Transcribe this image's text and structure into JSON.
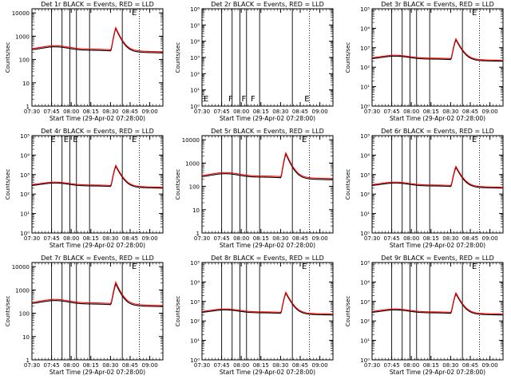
{
  "chart_data": [
    {
      "type": "line",
      "title": "Det 1r BLACK = Events, RED = LLD",
      "xlabel": "Start Time (29-Apr-02 07:28:00)",
      "ylabel": "Counts/sec",
      "ylim": [
        1,
        15000
      ],
      "ytick_labels": [
        "1",
        "10",
        "100",
        "1000",
        "10000"
      ],
      "xtick_labels": [
        "07:30",
        "07:45",
        "08:00",
        "08:15",
        "08:30",
        "08:45",
        "09:00"
      ],
      "flags": [
        {
          "label": "E",
          "x": "08:45"
        }
      ],
      "series": [
        {
          "name": "Events",
          "color": "#000000",
          "peak": 1900
        },
        {
          "name": "LLD",
          "color": "#ff0000",
          "peak": 2100
        }
      ]
    },
    {
      "type": "line",
      "title": "Det 2r BLACK = Events, RED = LLD",
      "xlabel": "Start Time (29-Apr-02 07:28:00)",
      "ylabel": "Counts/sec",
      "ylim": [
        1,
        1000000
      ],
      "ytick_labels": [
        "10⁰",
        "10¹",
        "10²",
        "10³",
        "10⁴",
        "10⁵",
        "10⁶"
      ],
      "xtick_labels": [
        "07:30",
        "07:45",
        "08:00",
        "08:15",
        "08:30",
        "08:45",
        "09:00"
      ],
      "flags": [
        {
          "label": "E",
          "x": "07:30"
        },
        {
          "label": "F",
          "x": "07:49"
        },
        {
          "label": "F",
          "x": "07:59"
        },
        {
          "label": "F",
          "x": "08:06"
        },
        {
          "label": "E",
          "x": "08:47"
        }
      ],
      "series": []
    },
    {
      "type": "line",
      "title": "Det 3r BLACK = Events, RED = LLD",
      "xlabel": "Start Time (29-Apr-02 07:28:00)",
      "ylabel": "Counts/sec",
      "ylim": [
        1,
        100000
      ],
      "ytick_labels": [
        "10⁰",
        "10¹",
        "10²",
        "10³",
        "10⁴",
        "10⁵"
      ],
      "xtick_labels": [
        "07:30",
        "07:45",
        "08:00",
        "08:15",
        "08:30",
        "08:45",
        "09:00"
      ],
      "flags": [
        {
          "label": "E",
          "x": "08:45"
        }
      ],
      "series": [
        {
          "name": "Events",
          "color": "#000000",
          "peak": 2200
        },
        {
          "name": "LLD",
          "color": "#ff0000",
          "peak": 2500
        }
      ]
    },
    {
      "type": "line",
      "title": "Det 4r BLACK = Events, RED = LLD",
      "xlabel": "Start Time (29-Apr-02 07:28:00)",
      "ylabel": "Counts/sec",
      "ylim": [
        1,
        100000
      ],
      "ytick_labels": [
        "10⁰",
        "10¹",
        "10²",
        "10³",
        "10⁴",
        "10⁵"
      ],
      "xtick_labels": [
        "07:30",
        "07:45",
        "08:00",
        "08:15",
        "08:30",
        "08:45",
        "09:00"
      ],
      "flags": [
        {
          "label": "E",
          "x": "07:43"
        },
        {
          "label": "E",
          "x": "07:53"
        },
        {
          "label": "E",
          "x": "08:00"
        },
        {
          "label": "E",
          "x": "08:45"
        }
      ],
      "series": [
        {
          "name": "Events",
          "color": "#000000",
          "peak": 2300
        },
        {
          "name": "LLD",
          "color": "#ff0000",
          "peak": 2600
        }
      ]
    },
    {
      "type": "line",
      "title": "Det 5r BLACK = Events, RED = LLD",
      "xlabel": "Start Time (29-Apr-02 07:28:00)",
      "ylabel": "Counts/sec",
      "ylim": [
        1,
        15000
      ],
      "ytick_labels": [
        "1",
        "10",
        "100",
        "1000",
        "10000"
      ],
      "xtick_labels": [
        "07:30",
        "07:45",
        "08:00",
        "08:15",
        "08:30",
        "08:45",
        "09:00"
      ],
      "flags": [
        {
          "label": "E",
          "x": "08:45"
        }
      ],
      "series": [
        {
          "name": "Events",
          "color": "#000000",
          "peak": 2200
        },
        {
          "name": "LLD",
          "color": "#ff0000",
          "peak": 2500
        }
      ]
    },
    {
      "type": "line",
      "title": "Det 6r BLACK = Events, RED = LLD",
      "xlabel": "Start Time (29-Apr-02 07:28:00)",
      "ylabel": "Counts/sec",
      "ylim": [
        1,
        100000
      ],
      "ytick_labels": [
        "10⁰",
        "10¹",
        "10²",
        "10³",
        "10⁴",
        "10⁵"
      ],
      "xtick_labels": [
        "07:30",
        "07:45",
        "08:00",
        "08:15",
        "08:30",
        "08:45",
        "09:00"
      ],
      "flags": [
        {
          "label": "E",
          "x": "08:45"
        }
      ],
      "series": [
        {
          "name": "Events",
          "color": "#000000",
          "peak": 2000
        },
        {
          "name": "LLD",
          "color": "#ff0000",
          "peak": 2300
        }
      ]
    },
    {
      "type": "line",
      "title": "Det 7r BLACK = Events, RED = LLD",
      "xlabel": "Start Time (29-Apr-02 07:28:00)",
      "ylabel": "Counts/sec",
      "ylim": [
        1,
        15000
      ],
      "ytick_labels": [
        "1",
        "10",
        "100",
        "1000",
        "10000"
      ],
      "xtick_labels": [
        "07:30",
        "07:45",
        "08:00",
        "08:15",
        "08:30",
        "08:45",
        "09:00"
      ],
      "flags": [
        {
          "label": "E",
          "x": "08:45"
        }
      ],
      "series": [
        {
          "name": "Events",
          "color": "#000000",
          "peak": 1600
        },
        {
          "name": "LLD",
          "color": "#ff0000",
          "peak": 1900
        }
      ]
    },
    {
      "type": "line",
      "title": "Det 8r BLACK = Events, RED = LLD",
      "xlabel": "Start Time (29-Apr-02 07:28:00)",
      "ylabel": "Counts/sec",
      "ylim": [
        1,
        100000
      ],
      "ytick_labels": [
        "10⁰",
        "10¹",
        "10²",
        "10³",
        "10⁴",
        "10⁵"
      ],
      "xtick_labels": [
        "07:30",
        "07:45",
        "08:00",
        "08:15",
        "08:30",
        "08:45",
        "09:00"
      ],
      "flags": [
        {
          "label": "E",
          "x": "08:45"
        }
      ],
      "series": [
        {
          "name": "Events",
          "color": "#000000",
          "peak": 2300
        },
        {
          "name": "LLD",
          "color": "#ff0000",
          "peak": 2600
        }
      ]
    },
    {
      "type": "line",
      "title": "Det 9r BLACK = Events, RED = LLD",
      "xlabel": "Start Time (29-Apr-02 07:28:00)",
      "ylabel": "Counts/sec",
      "ylim": [
        1,
        100000
      ],
      "ytick_labels": [
        "10⁰",
        "10¹",
        "10²",
        "10³",
        "10⁴",
        "10⁵"
      ],
      "xtick_labels": [
        "07:30",
        "07:45",
        "08:00",
        "08:15",
        "08:30",
        "08:45",
        "09:00"
      ],
      "flags": [
        {
          "label": "E",
          "x": "08:45"
        }
      ],
      "series": [
        {
          "name": "Events",
          "color": "#000000",
          "peak": 2100
        },
        {
          "name": "LLD",
          "color": "#ff0000",
          "peak": 2400
        }
      ]
    }
  ]
}
